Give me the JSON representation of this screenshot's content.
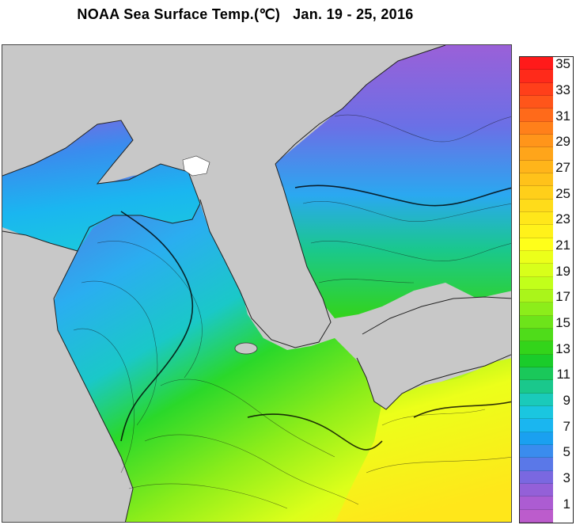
{
  "title": "NOAA Sea Surface Temp.(℃)   Jan. 19 - 25, 2016",
  "legend": {
    "min": 0,
    "max": 36,
    "step": 1,
    "labels": [
      "35",
      "33",
      "31",
      "29",
      "27",
      "25",
      "23",
      "21",
      "19",
      "17",
      "15",
      "13",
      "11",
      "9",
      "7",
      "5",
      "3",
      "1"
    ],
    "colors": [
      "#ff1a1a",
      "#ff2a1a",
      "#ff3f1a",
      "#ff551a",
      "#ff6a1a",
      "#ff801a",
      "#ff951a",
      "#ffa51a",
      "#ffb51a",
      "#ffc21a",
      "#ffcf1a",
      "#ffdc1a",
      "#ffe71a",
      "#fff21a",
      "#ffff1a",
      "#ecff1a",
      "#d8ff1a",
      "#c2ff1a",
      "#aaf51a",
      "#8ced1a",
      "#6de41a",
      "#4fdc1a",
      "#33d41a",
      "#1acc2a",
      "#1ac85a",
      "#1ac88c",
      "#1acaba",
      "#1ac6e0",
      "#1ab6f0",
      "#1aa0f0",
      "#3a8cee",
      "#5a78e8",
      "#7a68e0",
      "#9460d8",
      "#ac5cd2",
      "#bc5ccc"
    ]
  },
  "land_color": "#c8c8c8"
}
